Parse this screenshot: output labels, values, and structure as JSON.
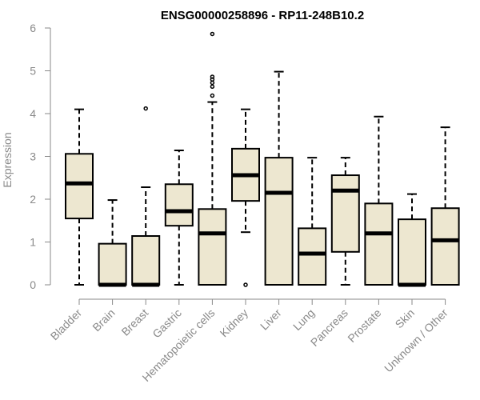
{
  "chart_data": {
    "type": "boxplot",
    "title": "ENSG00000258896 - RP11-248B10.2",
    "ylabel": "Expression",
    "xlabel": "",
    "ylim": [
      0,
      6
    ],
    "yticks": [
      0,
      1,
      2,
      3,
      4,
      5,
      6
    ],
    "grid": false,
    "box_color": "#ede7d0",
    "median_color": "#000000",
    "categories": [
      "Bladder",
      "Brain",
      "Breast",
      "Gastric",
      "Hematopoietic cells",
      "Kidney",
      "Liver",
      "Lung",
      "Pancreas",
      "Prostate",
      "Skin",
      "Unknown / Other"
    ],
    "boxes": [
      {
        "min": 0.0,
        "q1": 1.55,
        "median": 2.37,
        "q3": 3.06,
        "max": 4.1,
        "outliers": []
      },
      {
        "min": 0.0,
        "q1": 0.0,
        "median": 0.0,
        "q3": 0.96,
        "max": 1.98,
        "outliers": []
      },
      {
        "min": 0.0,
        "q1": 0.0,
        "median": 0.0,
        "q3": 1.14,
        "max": 2.28,
        "outliers": [
          4.12
        ]
      },
      {
        "min": 0.0,
        "q1": 1.38,
        "median": 1.72,
        "q3": 2.35,
        "max": 3.14,
        "outliers": []
      },
      {
        "min": 0.0,
        "q1": 0.0,
        "median": 1.2,
        "q3": 1.77,
        "max": 4.27,
        "outliers": [
          4.42,
          4.63,
          4.72,
          4.8,
          4.86,
          5.86
        ]
      },
      {
        "min": 1.23,
        "q1": 1.96,
        "median": 2.56,
        "q3": 3.18,
        "max": 4.1,
        "outliers": [
          0.0
        ]
      },
      {
        "min": 0.0,
        "q1": 0.0,
        "median": 2.15,
        "q3": 2.97,
        "max": 4.98,
        "outliers": []
      },
      {
        "min": 0.0,
        "q1": 0.0,
        "median": 0.73,
        "q3": 1.32,
        "max": 2.97,
        "outliers": []
      },
      {
        "min": 0.0,
        "q1": 0.77,
        "median": 2.2,
        "q3": 2.56,
        "max": 2.97,
        "outliers": []
      },
      {
        "min": 0.0,
        "q1": 0.0,
        "median": 1.2,
        "q3": 1.9,
        "max": 3.93,
        "outliers": []
      },
      {
        "min": 0.0,
        "q1": 0.0,
        "median": 0.0,
        "q3": 1.53,
        "max": 2.12,
        "outliers": []
      },
      {
        "min": 0.0,
        "q1": 0.0,
        "median": 1.04,
        "q3": 1.79,
        "max": 3.68,
        "outliers": []
      }
    ]
  }
}
